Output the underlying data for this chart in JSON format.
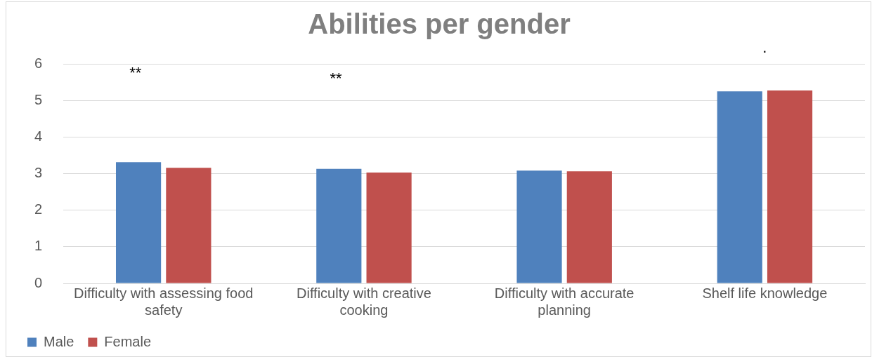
{
  "chart_data": {
    "type": "bar",
    "title": "Abilities per gender",
    "categories": [
      "Difficulty with assessing food safety",
      "Difficulty with creative cooking",
      "Difficulty with accurate planning",
      "Shelf life knowledge"
    ],
    "series": [
      {
        "name": "Male",
        "color": "#4f81bd",
        "values": [
          3.31,
          3.13,
          3.08,
          5.25
        ]
      },
      {
        "name": "Female",
        "color": "#c0504d",
        "values": [
          3.16,
          3.03,
          3.06,
          5.27
        ]
      }
    ],
    "ylim": [
      0,
      6
    ],
    "yticks": [
      0,
      1,
      2,
      3,
      4,
      5,
      6
    ],
    "grid": "y",
    "legend": "bottom left",
    "annotations": [
      "**",
      "**",
      "."
    ]
  }
}
